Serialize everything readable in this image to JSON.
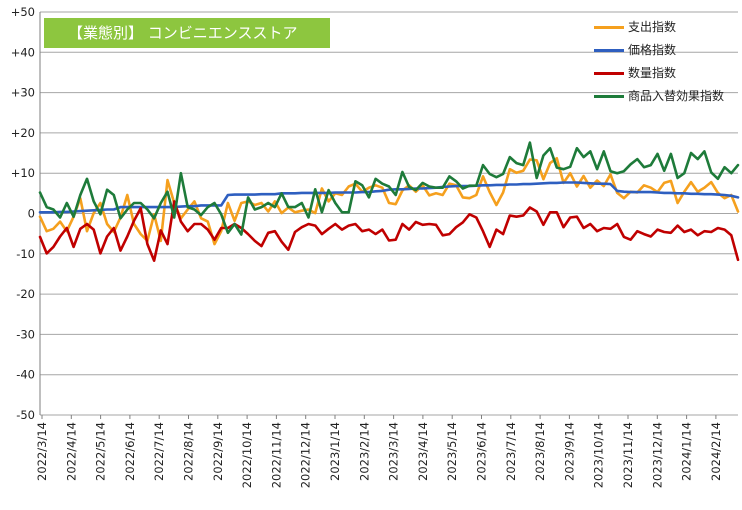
{
  "chart_data": {
    "type": "line",
    "title": "【業態別】 コンビニエンスストア",
    "ylim": [
      -50,
      50
    ],
    "y_ticks": [
      "+50",
      "+40",
      "+30",
      "+20",
      "+10",
      "0",
      "-10",
      "-20",
      "-30",
      "-40",
      "-50"
    ],
    "x_tick_labels": [
      "2022/3/14",
      "2022/4/14",
      "2022/5/14",
      "2022/6/14",
      "2022/7/14",
      "2022/8/14",
      "2022/9/14",
      "2022/10/14",
      "2022/11/14",
      "2022/12/14",
      "2023/1/14",
      "2023/2/14",
      "2023/3/14",
      "2023/4/14",
      "2023/5/14",
      "2023/6/14",
      "2023/7/14",
      "2023/8/14",
      "2023/9/14",
      "2023/10/14",
      "2023/11/14",
      "2023/12/14",
      "2024/1/14",
      "2024/2/14"
    ],
    "grid": true,
    "legend_position": "top-right",
    "series": [
      {
        "name": "支出指数",
        "color": "#f5a01e",
        "values": [
          -0.8,
          -4.4,
          -3.8,
          -2.0,
          -4.4,
          -0.8,
          3.8,
          -4.4,
          0.1,
          2.6,
          -2.6,
          -4.6,
          -1.0,
          4.6,
          -2.6,
          -5.1,
          -6.8,
          -0.2,
          -6.8,
          8.3,
          2.6,
          -1.2,
          1.0,
          3.0,
          -1.2,
          -2.0,
          -7.6,
          -4.4,
          2.6,
          -1.8,
          2.6,
          3.0,
          2.1,
          2.6,
          0.5,
          3.0,
          0.1,
          1.5,
          0.3,
          0.7,
          1.0,
          0.1,
          6.2,
          3.0,
          5.0,
          4.6,
          6.7,
          7.4,
          5.4,
          6.4,
          7.0,
          6.4,
          2.6,
          2.3,
          5.7,
          7.0,
          5.4,
          7.0,
          4.5,
          5.0,
          4.6,
          7.4,
          7.0,
          4.0,
          3.8,
          4.6,
          9.2,
          5.3,
          2.1,
          5.2,
          11.0,
          10.1,
          10.6,
          13.4,
          13.2,
          8.5,
          12.5,
          13.7,
          7.6,
          10.0,
          6.7,
          9.3,
          6.4,
          8.2,
          6.8,
          9.7,
          5.1,
          3.8,
          5.4,
          5.2,
          7.0,
          6.4,
          5.3,
          7.6,
          8.1,
          2.6,
          5.4,
          7.8,
          5.4,
          6.4,
          7.8,
          5.1,
          3.8,
          4.6,
          0.5
        ]
      },
      {
        "name": "価格指数",
        "color": "#2e5fc0",
        "values": [
          0.3,
          0.3,
          0.3,
          0.4,
          0.4,
          0.5,
          0.6,
          0.7,
          0.8,
          0.9,
          1.0,
          1.0,
          1.6,
          1.6,
          1.6,
          1.6,
          1.6,
          1.6,
          1.6,
          1.6,
          1.6,
          1.7,
          1.8,
          1.8,
          2.0,
          2.0,
          2.0,
          2.0,
          4.6,
          4.7,
          4.7,
          4.7,
          4.7,
          4.8,
          4.8,
          4.8,
          5.0,
          5.0,
          5.0,
          5.1,
          5.1,
          5.1,
          5.1,
          5.1,
          5.2,
          5.2,
          5.2,
          5.2,
          5.3,
          5.3,
          5.5,
          5.6,
          5.9,
          6.0,
          6.0,
          6.1,
          6.2,
          6.2,
          6.3,
          6.4,
          6.6,
          6.7,
          6.8,
          6.8,
          6.8,
          6.9,
          7.0,
          7.0,
          7.1,
          7.1,
          7.2,
          7.2,
          7.3,
          7.3,
          7.4,
          7.5,
          7.6,
          7.6,
          7.7,
          7.7,
          7.7,
          7.6,
          7.5,
          7.4,
          7.4,
          7.3,
          5.6,
          5.4,
          5.3,
          5.3,
          5.3,
          5.3,
          5.2,
          5.1,
          5.1,
          5.0,
          5.0,
          4.9,
          4.9,
          4.8,
          4.8,
          4.7,
          4.6,
          4.4,
          4.0
        ]
      },
      {
        "name": "数量指数",
        "color": "#c00000",
        "values": [
          -5.8,
          -9.9,
          -8.3,
          -5.7,
          -3.6,
          -8.3,
          -3.8,
          -2.6,
          -4.0,
          -9.9,
          -5.7,
          -3.6,
          -9.2,
          -5.7,
          -1.8,
          1.3,
          -7.6,
          -11.7,
          -4.2,
          -7.6,
          3.0,
          -2.0,
          -4.4,
          -2.6,
          -2.6,
          -4.0,
          -6.5,
          -3.6,
          -3.6,
          -2.6,
          -3.6,
          -5.1,
          -6.8,
          -8.1,
          -4.8,
          -4.4,
          -7.0,
          -9.0,
          -4.6,
          -3.4,
          -2.6,
          -3.0,
          -5.1,
          -3.8,
          -2.6,
          -4.0,
          -3.0,
          -2.6,
          -4.4,
          -4.0,
          -5.1,
          -4.0,
          -6.7,
          -6.5,
          -2.6,
          -4.0,
          -2.1,
          -2.8,
          -2.6,
          -2.8,
          -5.4,
          -5.1,
          -3.4,
          -2.2,
          -0.2,
          -1.0,
          -4.4,
          -8.3,
          -4.0,
          -5.1,
          -0.5,
          -0.8,
          -0.5,
          1.5,
          0.5,
          -2.8,
          0.3,
          0.3,
          -3.4,
          -1.0,
          -0.8,
          -3.6,
          -2.6,
          -4.4,
          -3.6,
          -3.8,
          -2.6,
          -5.8,
          -6.5,
          -4.4,
          -5.1,
          -5.7,
          -4.0,
          -4.6,
          -4.8,
          -3.0,
          -4.6,
          -4.0,
          -5.4,
          -4.4,
          -4.6,
          -3.6,
          -4.0,
          -5.4,
          -11.5
        ]
      },
      {
        "name": "商品入替効果指数",
        "color": "#1e7b3a",
        "values": [
          5.2,
          1.6,
          1.0,
          -1.0,
          2.6,
          -0.8,
          4.6,
          8.6,
          3.0,
          -0.2,
          5.9,
          4.6,
          -1.2,
          1.0,
          2.6,
          2.6,
          1.0,
          -1.2,
          2.6,
          5.4,
          -1.0,
          10.0,
          1.6,
          1.0,
          -0.4,
          1.6,
          2.6,
          -0.2,
          -4.8,
          -2.6,
          -5.2,
          4.0,
          1.0,
          1.6,
          2.6,
          1.6,
          5.0,
          1.6,
          1.6,
          2.6,
          -1.0,
          6.0,
          0.3,
          5.8,
          2.6,
          0.3,
          0.3,
          8.0,
          7.0,
          4.0,
          8.6,
          7.4,
          6.7,
          4.6,
          10.3,
          6.6,
          5.8,
          7.6,
          6.7,
          6.4,
          6.4,
          9.2,
          8.0,
          6.2,
          6.9,
          6.9,
          12.0,
          9.8,
          9.0,
          9.8,
          14.0,
          12.5,
          12.0,
          17.6,
          8.8,
          14.4,
          16.2,
          11.4,
          11.0,
          11.6,
          16.2,
          14.0,
          15.4,
          11.0,
          15.4,
          10.5,
          10.0,
          10.5,
          12.2,
          13.5,
          11.5,
          12.0,
          14.8,
          10.6,
          14.8,
          8.8,
          10.0,
          15.0,
          13.5,
          15.4,
          10.2,
          8.6,
          11.5,
          10.0,
          12.0
        ]
      }
    ]
  }
}
